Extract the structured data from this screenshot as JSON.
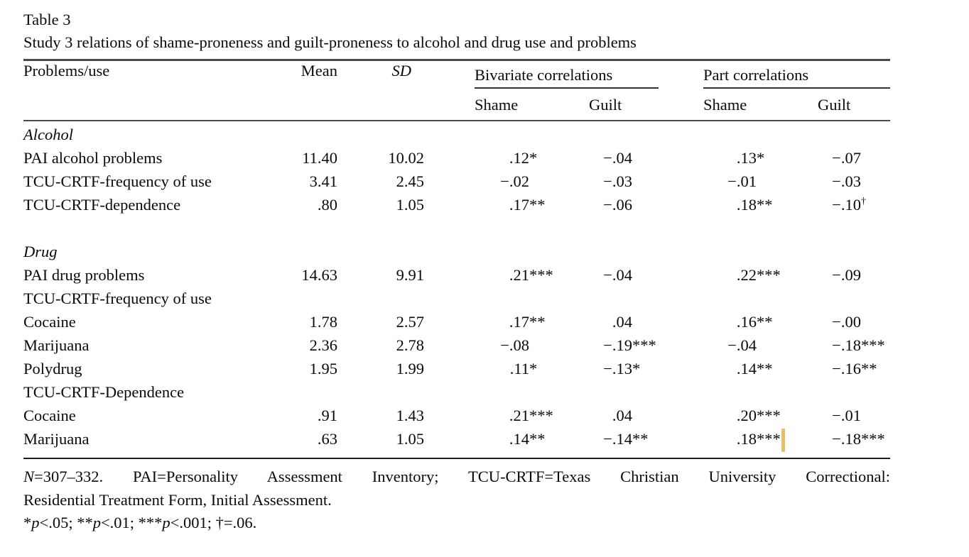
{
  "title": "Table 3",
  "subtitle": "Study 3 relations of shame-proneness and guilt-proneness to alcohol and drug use and problems",
  "table": {
    "col_headers": {
      "label": "Problems/use",
      "mean": "Mean",
      "sd": "SD",
      "group1": "Bivariate correlations",
      "group2": "Part correlations",
      "sub": [
        "Shame",
        "Guilt",
        "Shame",
        "Guilt"
      ]
    },
    "rows": [
      {
        "type": "section",
        "label": "Alcohol"
      },
      {
        "type": "data",
        "label": "PAI alcohol problems",
        "mean": "11.40",
        "sd": "10.02",
        "corr": [
          {
            "v": ".12",
            "s": "*"
          },
          {
            "v": "−.04",
            "s": ""
          },
          {
            "v": ".13",
            "s": "*"
          },
          {
            "v": "−.07",
            "s": ""
          }
        ]
      },
      {
        "type": "data",
        "label": "TCU-CRTF-frequency of use",
        "mean": "3.41",
        "sd": "2.45",
        "corr": [
          {
            "v": "−.02",
            "s": ""
          },
          {
            "v": "−.03",
            "s": ""
          },
          {
            "v": "−.01",
            "s": ""
          },
          {
            "v": "−.03",
            "s": ""
          }
        ]
      },
      {
        "type": "data",
        "label": "TCU-CRTF-dependence",
        "mean": ".80",
        "sd": "1.05",
        "corr": [
          {
            "v": ".17",
            "s": "**"
          },
          {
            "v": "−.06",
            "s": ""
          },
          {
            "v": ".18",
            "s": "**"
          },
          {
            "v": "−.10",
            "s": "†"
          }
        ]
      },
      {
        "type": "spacer"
      },
      {
        "type": "section",
        "label": "Drug"
      },
      {
        "type": "data",
        "label": "PAI drug problems",
        "mean": "14.63",
        "sd": "9.91",
        "corr": [
          {
            "v": ".21",
            "s": "***"
          },
          {
            "v": "−.04",
            "s": ""
          },
          {
            "v": ".22",
            "s": "***"
          },
          {
            "v": "−.09",
            "s": ""
          }
        ]
      },
      {
        "type": "subhead",
        "label": "TCU-CRTF-frequency of use"
      },
      {
        "type": "data",
        "label": "Cocaine",
        "mean": "1.78",
        "sd": "2.57",
        "corr": [
          {
            "v": ".17",
            "s": "**"
          },
          {
            "v": ".04",
            "s": ""
          },
          {
            "v": ".16",
            "s": "**"
          },
          {
            "v": "−.00",
            "s": ""
          }
        ]
      },
      {
        "type": "data",
        "label": "Marijuana",
        "mean": "2.36",
        "sd": "2.78",
        "corr": [
          {
            "v": "−.08",
            "s": ""
          },
          {
            "v": "−.19",
            "s": "***"
          },
          {
            "v": "−.04",
            "s": ""
          },
          {
            "v": "−.18",
            "s": "***"
          }
        ]
      },
      {
        "type": "data",
        "label": "Polydrug",
        "mean": "1.95",
        "sd": "1.99",
        "corr": [
          {
            "v": ".11",
            "s": "*"
          },
          {
            "v": "−.13",
            "s": "*"
          },
          {
            "v": ".14",
            "s": "**"
          },
          {
            "v": "−.16",
            "s": "**"
          }
        ]
      },
      {
        "type": "subhead",
        "label": "TCU-CRTF-Dependence"
      },
      {
        "type": "data",
        "label": "Cocaine",
        "mean": ".91",
        "sd": "1.43",
        "corr": [
          {
            "v": ".21",
            "s": "***"
          },
          {
            "v": ".04",
            "s": ""
          },
          {
            "v": ".20",
            "s": "***"
          },
          {
            "v": "−.01",
            "s": ""
          }
        ]
      },
      {
        "type": "data",
        "label": "Marijuana",
        "mean": ".63",
        "sd": "1.05",
        "corr": [
          {
            "v": ".14",
            "s": "**"
          },
          {
            "v": "−.14",
            "s": "**"
          },
          {
            "v": ".18",
            "s": "***"
          },
          {
            "v": "−.18",
            "s": "***"
          }
        ]
      }
    ]
  },
  "footnotes": {
    "lines": [
      [
        {
          "t": "N",
          "i": true
        },
        {
          "t": "=307–332. PAI=Personality Assessment Inventory; TCU-CRTF=Texas Christian University Correctional:"
        }
      ],
      [
        {
          "t": "Residential Treatment Form, Initial Assessment."
        }
      ],
      [
        {
          "t": "*"
        },
        {
          "t": "p",
          "i": true
        },
        {
          "t": "<.05; **"
        },
        {
          "t": "p",
          "i": true
        },
        {
          "t": "<.01; ***"
        },
        {
          "t": "p",
          "i": true
        },
        {
          "t": "<.001; †=.06."
        }
      ]
    ]
  },
  "cursor": {
    "color": "#E4BF6E"
  }
}
